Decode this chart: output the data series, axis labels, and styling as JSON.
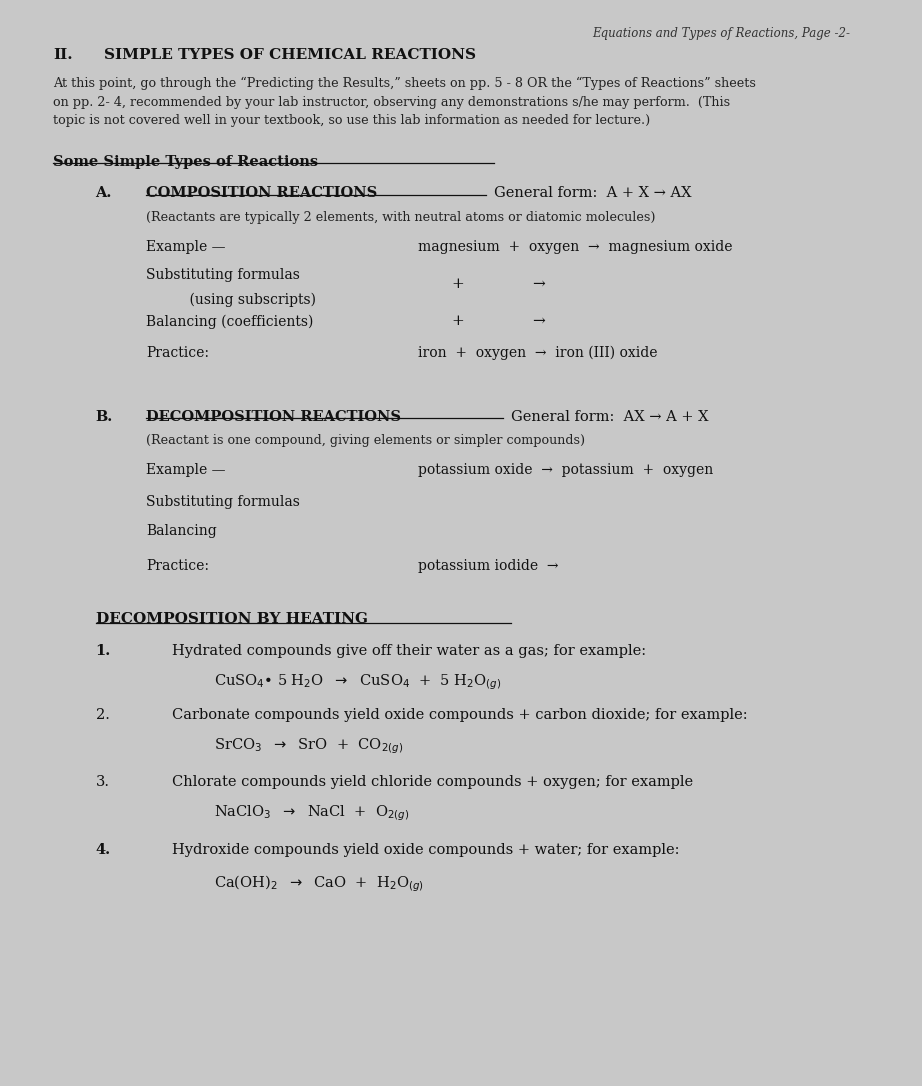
{
  "bg_color": "#c8c8c8",
  "paper_color": "#f5f3f0",
  "header_italic": "Equations and Types of Reactions, Page -2-",
  "section_num": "II.",
  "section_title": "SIMPLE TYPES OF CHEMICAL REACTIONS",
  "intro_text": "At this point, go through the “Predicting the Results,” sheets on pp. 5 - 8 OR the “Types of Reactions” sheets\non pp. 2- 4, recommended by your lab instructor, observing any demonstrations s/he may perform.  (This\ntopic is not covered well in your textbook, so use this lab information as needed for lecture.)",
  "some_simple": "Some Simple Types of Reactions",
  "A_label": "A.",
  "A_title": "COMPOSITION REACTIONS",
  "A_general": "General form:  A + X → AX",
  "A_sub": "(Reactants are typically 2 elements, with neutral atoms or diatomic molecules)",
  "example_dash": "Example —",
  "A_example": "magnesium  +  oxygen  →  magnesium oxide",
  "subst_line1": "Substituting formulas",
  "subst_line2": "    (using subscripts)",
  "subst_content": "+              →",
  "balancing_label": "Balancing (coefficients)",
  "balancing_content": "+              →",
  "practice_label": "Practice:",
  "A_practice": "iron  +  oxygen  →  iron (III) oxide",
  "B_label": "B.",
  "B_title": "DECOMPOSITION REACTIONS",
  "B_general": "General form:  AX → A + X",
  "B_sub": "(Reactant is one compound, giving elements or simpler compounds)",
  "B_example": "potassium oxide  →  potassium  +  oxygen",
  "B_subst_label": "Substituting formulas",
  "B_balancing_label": "Balancing",
  "B_practice_label": "Practice:",
  "B_practice": "potassium iodide  →",
  "decomp_heat_title": "DECOMPOSITION BY HEATING",
  "item1_num": "1.",
  "item1_text": "Hydrated compounds give off their water as a gas; for example:",
  "item2_num": "2.",
  "item2_text": "Carbonate compounds yield oxide compounds + carbon dioxide; for example:",
  "item3_num": "3.",
  "item3_text": "Chlorate compounds yield chloride compounds + oxygen; for example",
  "item4_num": "4.",
  "item4_text": "Hydroxide compounds yield oxide compounds + water; for example:"
}
